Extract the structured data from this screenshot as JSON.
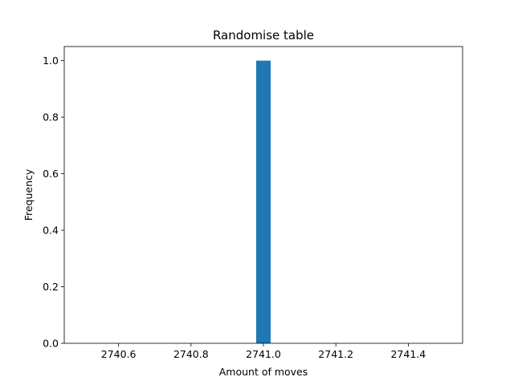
{
  "chart_data": {
    "type": "bar",
    "title": "Randomise table",
    "xlabel": "Amount of moves",
    "ylabel": "Frequency",
    "xlim": [
      2740.45,
      2741.55
    ],
    "ylim": [
      0,
      1.05
    ],
    "x_ticks": [
      "2740.6",
      "2740.8",
      "2741.0",
      "2741.2",
      "2741.4"
    ],
    "y_ticks": [
      "0.0",
      "0.2",
      "0.4",
      "0.6",
      "0.8",
      "1.0"
    ],
    "x_tick_values": [
      2740.6,
      2740.8,
      2741.0,
      2741.2,
      2741.4
    ],
    "y_tick_values": [
      0.0,
      0.2,
      0.4,
      0.6,
      0.8,
      1.0
    ],
    "bins": [
      {
        "x0": 2740.98,
        "x1": 2741.02,
        "value": 1
      }
    ],
    "bar_color": "#1f77b4",
    "grid": false
  }
}
